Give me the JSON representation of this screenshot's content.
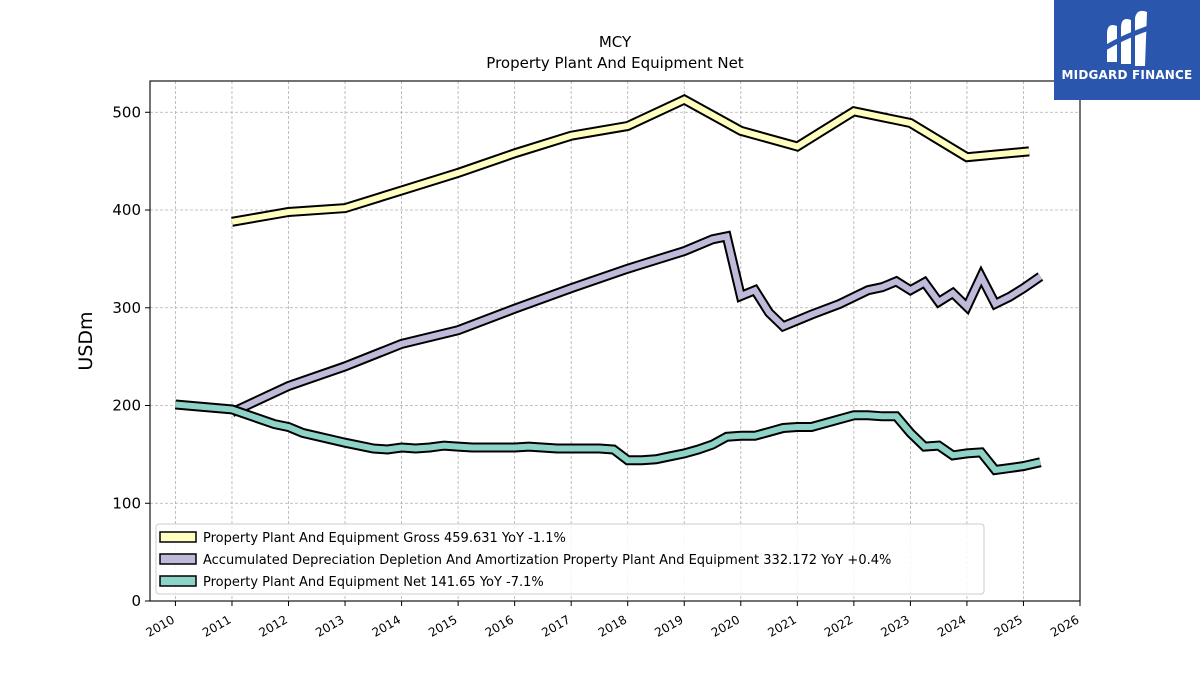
{
  "chart_data": {
    "type": "line",
    "title": "MCY",
    "subtitle": "Property Plant And Equipment Net",
    "ylabel": "USDm",
    "xlabel": "",
    "xlim": [
      2009.55,
      2026.0
    ],
    "ylim": [
      0,
      532
    ],
    "x_ticks": [
      2010,
      2011,
      2012,
      2013,
      2014,
      2015,
      2016,
      2017,
      2018,
      2019,
      2020,
      2021,
      2022,
      2023,
      2024,
      2025,
      2026
    ],
    "y_ticks": [
      0,
      100,
      200,
      300,
      400,
      500
    ],
    "grid": true,
    "legend_position": "lower-left",
    "series": [
      {
        "name": "Property Plant And Equipment Gross  459.631 YoY -1.1%",
        "color": "#ffffbf",
        "x": [
          2011.0,
          2012.0,
          2013.0,
          2014.0,
          2015.0,
          2016.0,
          2017.0,
          2018.0,
          2019.0,
          2020.0,
          2021.0,
          2022.0,
          2023.0,
          2024.0,
          2025.1
        ],
        "values": [
          388,
          398,
          402,
          420,
          438,
          458,
          476,
          486,
          513,
          481,
          465,
          501,
          489,
          454,
          460
        ]
      },
      {
        "name": "Accumulated Depreciation Depletion And Amortization Property Plant And Equipment  332.172 YoY +0.4%",
        "color": "#bebada",
        "x": [
          2011.0,
          2012.0,
          2013.0,
          2014.0,
          2015.0,
          2016.0,
          2017.0,
          2018.0,
          2019.0,
          2019.5,
          2019.75,
          2020.0,
          2020.25,
          2020.5,
          2020.75,
          2021.0,
          2021.25,
          2021.75,
          2022.0,
          2022.25,
          2022.5,
          2022.75,
          2023.0,
          2023.25,
          2023.5,
          2023.75,
          2024.0,
          2024.25,
          2024.5,
          2024.75,
          2025.0,
          2025.3
        ],
        "values": [
          193,
          220,
          240,
          263,
          277,
          299,
          320,
          340,
          358,
          370,
          373,
          312,
          318,
          295,
          281,
          287,
          293,
          304,
          311,
          318,
          321,
          327,
          318,
          326,
          306,
          315,
          301,
          332,
          304,
          311,
          320,
          332
        ]
      },
      {
        "name": "Property Plant And Equipment Net  141.65 YoY -7.1%",
        "color": "#8dd3c7",
        "x": [
          2010.0,
          2011.0,
          2011.75,
          2012.0,
          2012.25,
          2013.0,
          2013.5,
          2013.75,
          2014.0,
          2014.25,
          2014.5,
          2014.75,
          2015.0,
          2015.25,
          2015.75,
          2016.0,
          2016.25,
          2016.75,
          2017.0,
          2017.25,
          2017.5,
          2017.75,
          2018.0,
          2018.25,
          2018.5,
          2018.75,
          2019.0,
          2019.25,
          2019.5,
          2019.75,
          2020.0,
          2020.25,
          2020.5,
          2020.75,
          2021.0,
          2021.25,
          2021.5,
          2021.75,
          2022.0,
          2022.25,
          2022.5,
          2022.75,
          2023.0,
          2023.25,
          2023.5,
          2023.75,
          2024.0,
          2024.25,
          2024.5,
          2024.75,
          2025.0,
          2025.3
        ],
        "values": [
          201,
          196,
          181,
          178,
          172,
          162,
          156,
          155,
          157,
          156,
          157,
          159,
          158,
          157,
          157,
          157,
          158,
          156,
          156,
          156,
          156,
          155,
          144,
          144,
          145,
          148,
          151,
          155,
          160,
          168,
          169,
          169,
          173,
          177,
          178,
          178,
          182,
          186,
          190,
          190,
          189,
          189,
          172,
          158,
          159,
          149,
          151,
          152,
          134,
          136,
          138,
          142
        ]
      }
    ]
  },
  "logo": {
    "text": "MIDGARD FINANCE",
    "color": "#2b56ad"
  }
}
